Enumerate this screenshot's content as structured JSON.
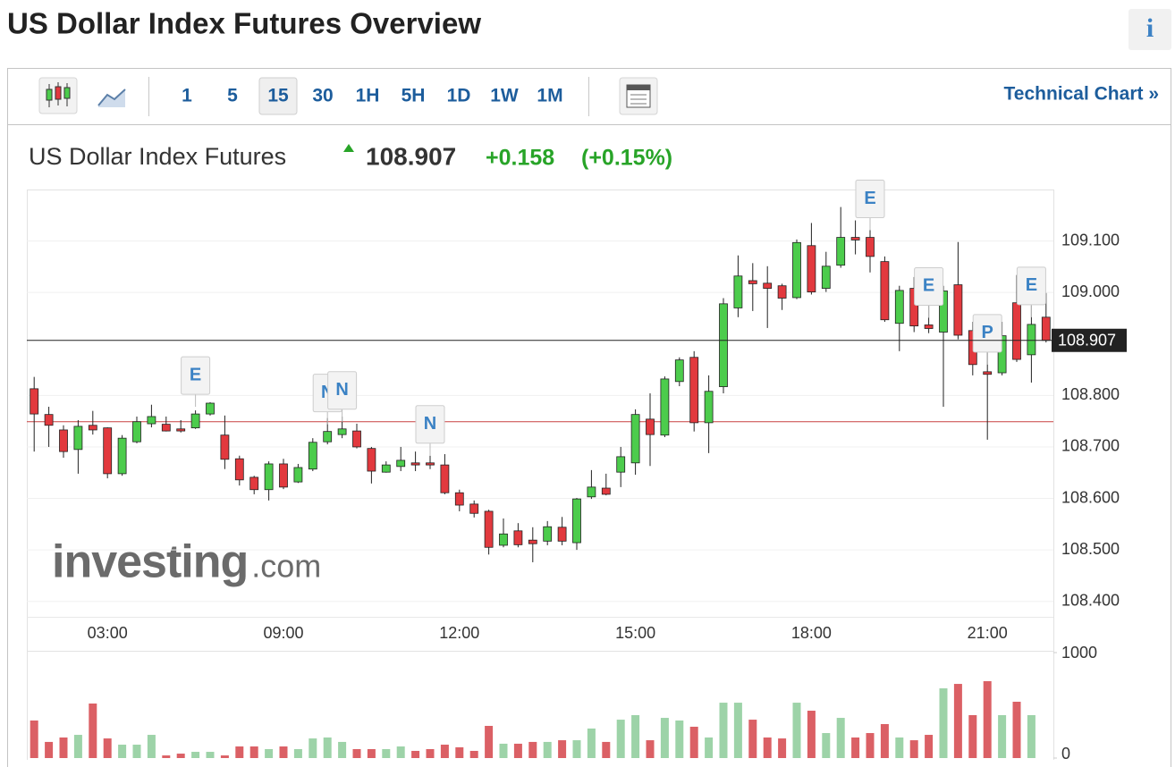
{
  "page": {
    "title": "US Dollar Index Futures Overview",
    "info_icon": "i"
  },
  "toolbar": {
    "intervals": [
      "1",
      "5",
      "15",
      "30",
      "1H",
      "5H",
      "1D",
      "1W",
      "1M"
    ],
    "active_interval": 2,
    "link": "Technical Chart »"
  },
  "quote": {
    "name": "US Dollar Index Futures",
    "price": 108.907,
    "change": "+0.158",
    "change_percent": "(+0.15%)"
  },
  "chart_data": {
    "type": "candlestick",
    "categories": [
      null,
      null,
      null,
      null,
      null,
      "03:00",
      null,
      null,
      null,
      null,
      null,
      null,
      null,
      null,
      null,
      null,
      null,
      "09:00",
      null,
      null,
      null,
      null,
      null,
      null,
      null,
      null,
      null,
      null,
      null,
      "12:00",
      null,
      null,
      null,
      null,
      null,
      null,
      null,
      null,
      null,
      null,
      null,
      "15:00",
      null,
      null,
      null,
      null,
      null,
      null,
      null,
      null,
      null,
      null,
      null,
      "18:00",
      null,
      null,
      null,
      null,
      null,
      null,
      null,
      null,
      null,
      null,
      null,
      "21:00",
      null,
      null,
      null,
      null
    ],
    "open": [
      108.813,
      108.763,
      108.733,
      108.695,
      108.742,
      108.737,
      108.648,
      108.71,
      108.745,
      108.744,
      108.735,
      108.737,
      108.764,
      108.723,
      108.677,
      108.641,
      108.617,
      108.667,
      108.632,
      108.657,
      108.71,
      108.724,
      108.731,
      108.697,
      108.651,
      108.662,
      108.669,
      108.669,
      108.665,
      108.611,
      108.589,
      108.575,
      108.509,
      108.537,
      108.519,
      108.517,
      108.544,
      108.514,
      108.603,
      108.62,
      108.651,
      108.669,
      108.754,
      108.723,
      108.827,
      108.874,
      108.747,
      108.817,
      108.97,
      109.023,
      109.018,
      109.013,
      108.99,
      109.091,
      109.008,
      109.053,
      109.107,
      109.107,
      109.06,
      108.94,
      109.008,
      108.937,
      108.923,
      109.015,
      108.926,
      108.846,
      108.844,
      108.98,
      108.879,
      108.952
    ],
    "high": [
      108.836,
      108.778,
      108.742,
      108.752,
      108.77,
      108.738,
      108.723,
      108.759,
      108.782,
      108.759,
      108.752,
      108.771,
      108.787,
      108.761,
      108.683,
      108.644,
      108.672,
      108.677,
      108.667,
      108.717,
      108.756,
      108.759,
      108.745,
      108.7,
      108.672,
      108.7,
      108.691,
      108.683,
      108.686,
      108.617,
      108.596,
      108.578,
      108.561,
      108.552,
      108.544,
      108.556,
      108.564,
      108.601,
      108.655,
      108.648,
      108.7,
      108.773,
      108.804,
      108.837,
      108.874,
      108.886,
      108.839,
      108.989,
      109.072,
      109.057,
      109.051,
      109.017,
      109.103,
      109.135,
      109.079,
      109.166,
      109.14,
      109.143,
      109.07,
      109.013,
      109.03,
      108.996,
      109.013,
      109.098,
      108.943,
      108.943,
      108.943,
      109.034,
      108.975,
      108.999
    ],
    "low": [
      108.691,
      108.7,
      108.679,
      108.648,
      108.724,
      108.639,
      108.644,
      108.707,
      108.738,
      108.73,
      108.728,
      108.735,
      108.761,
      108.657,
      108.625,
      108.608,
      108.596,
      108.618,
      108.63,
      108.653,
      108.705,
      108.717,
      108.697,
      108.629,
      108.65,
      108.653,
      108.653,
      108.657,
      108.608,
      108.575,
      108.563,
      108.491,
      108.505,
      108.505,
      108.476,
      108.509,
      108.509,
      108.5,
      108.599,
      108.606,
      108.622,
      108.646,
      108.663,
      108.719,
      108.818,
      108.73,
      108.688,
      108.804,
      108.952,
      108.964,
      108.931,
      108.966,
      108.987,
      108.996,
      109.001,
      109.048,
      109.074,
      109.039,
      108.943,
      108.886,
      108.923,
      108.921,
      108.778,
      108.909,
      108.839,
      108.714,
      108.839,
      108.865,
      108.825,
      108.903
    ],
    "close": [
      108.764,
      108.742,
      108.691,
      108.74,
      108.733,
      108.648,
      108.717,
      108.749,
      108.759,
      108.731,
      108.731,
      108.764,
      108.785,
      108.676,
      108.636,
      108.617,
      108.667,
      108.622,
      108.66,
      108.709,
      108.73,
      108.735,
      108.7,
      108.653,
      108.665,
      108.674,
      108.665,
      108.665,
      108.611,
      108.587,
      108.571,
      108.505,
      108.531,
      108.51,
      108.512,
      108.545,
      108.517,
      108.599,
      108.622,
      108.608,
      108.681,
      108.763,
      108.724,
      108.832,
      108.869,
      108.747,
      108.808,
      108.978,
      109.032,
      109.017,
      109.008,
      108.989,
      109.097,
      109.001,
      109.051,
      109.107,
      109.102,
      109.07,
      108.947,
      109.004,
      108.935,
      108.93,
      109.003,
      108.917,
      108.86,
      108.841,
      108.916,
      108.87,
      108.938,
      108.907
    ],
    "up_color": "#4ccc4c",
    "down_color": "#e2393e",
    "ylim": [
      108.37,
      109.2
    ],
    "yticks": [
      {
        "value": 109.1,
        "label": "109.100"
      },
      {
        "value": 109.0,
        "label": "109.000"
      },
      {
        "value": 108.8,
        "label": "108.800"
      },
      {
        "value": 108.7,
        "label": "108.700"
      },
      {
        "value": 108.6,
        "label": "108.600"
      },
      {
        "value": 108.5,
        "label": "108.500"
      },
      {
        "value": 108.4,
        "label": "108.400"
      }
    ],
    "reference_line": 108.749,
    "event_labels": [
      null,
      null,
      null,
      null,
      null,
      null,
      null,
      null,
      null,
      null,
      null,
      "E",
      null,
      null,
      null,
      null,
      null,
      null,
      null,
      null,
      "N",
      "N",
      null,
      null,
      null,
      null,
      null,
      "N",
      null,
      null,
      null,
      null,
      null,
      null,
      null,
      null,
      null,
      null,
      null,
      null,
      null,
      null,
      null,
      null,
      null,
      null,
      null,
      null,
      null,
      null,
      null,
      null,
      null,
      null,
      null,
      null,
      null,
      "E",
      null,
      null,
      null,
      "E",
      null,
      null,
      null,
      "P",
      null,
      null,
      "E",
      null
    ],
    "volume": {
      "values": [
        356,
        153,
        195,
        220,
        517,
        186,
        127,
        127,
        220,
        25,
        42,
        59,
        59,
        25,
        110,
        110,
        85,
        110,
        85,
        186,
        195,
        153,
        85,
        85,
        85,
        110,
        68,
        85,
        127,
        102,
        68,
        305,
        136,
        136,
        153,
        153,
        169,
        169,
        280,
        153,
        364,
        407,
        169,
        381,
        356,
        297,
        195,
        525,
        525,
        364,
        195,
        186,
        525,
        449,
        237,
        381,
        195,
        237,
        322,
        195,
        169,
        220,
        661,
        703,
        407,
        729,
        407,
        534,
        407,
        0
      ],
      "up_color": "#9dd3a8",
      "down_color": "#db6065",
      "ylim": [
        0,
        1000
      ],
      "yticks": [
        1000,
        0
      ]
    },
    "watermark": "investing",
    "watermark_suffix": ".com"
  }
}
